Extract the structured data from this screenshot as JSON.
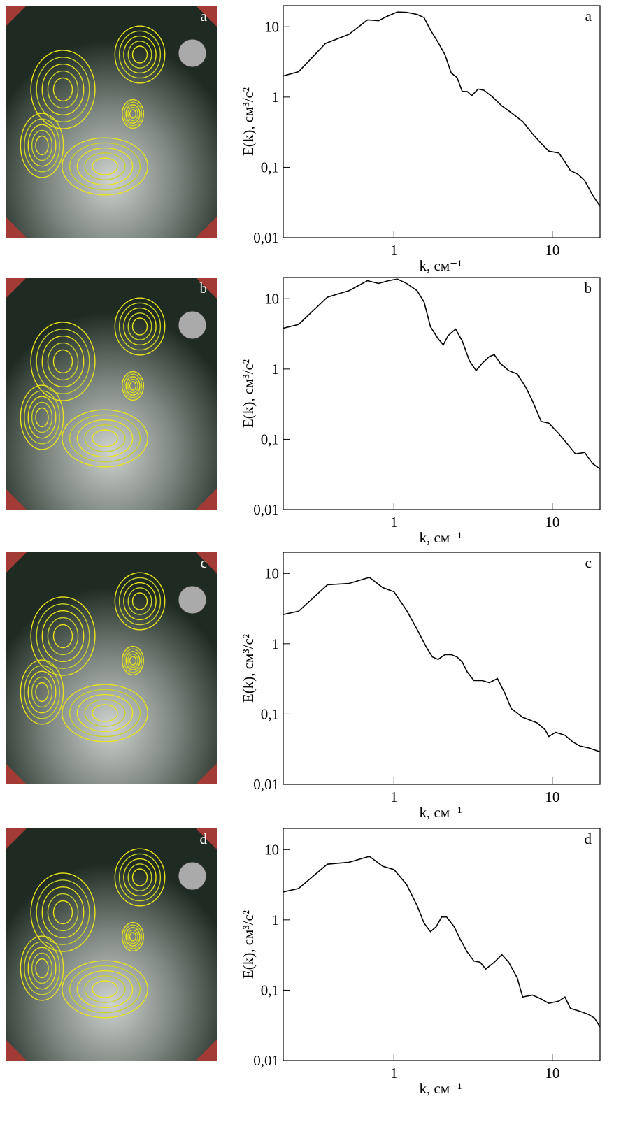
{
  "chart_data": [
    {
      "type": "line",
      "label": "a",
      "xlabel": "k, см⁻¹",
      "ylabel": "E(k), см³/с²",
      "color": "#000000",
      "xscale": "log",
      "yscale": "log",
      "xlim": [
        0.2,
        20
      ],
      "ylim": [
        0.01,
        20
      ],
      "xticks": [
        1,
        10
      ],
      "yticks": [
        {
          "value": 0.01,
          "label": "0,01"
        },
        {
          "value": 0.1,
          "label": "0,1"
        },
        1,
        10
      ],
      "x": [
        0.2,
        0.25,
        0.37,
        0.52,
        0.68,
        0.8,
        0.9,
        1.05,
        1.2,
        1.4,
        1.55,
        1.7,
        1.9,
        2.1,
        2.3,
        2.5,
        2.7,
        2.9,
        3.1,
        3.4,
        3.7,
        4.2,
        4.8,
        5.5,
        6.5,
        7.5,
        8.5,
        9.5,
        11,
        12,
        13,
        14.5,
        16,
        18,
        20
      ],
      "values": [
        2.0,
        2.3,
        5.8,
        7.8,
        12.5,
        12.2,
        14,
        16.2,
        16,
        15,
        13.5,
        9,
        6,
        4,
        2.2,
        1.9,
        1.2,
        1.2,
        1.05,
        1.3,
        1.25,
        1.0,
        0.75,
        0.6,
        0.45,
        0.3,
        0.22,
        0.17,
        0.16,
        0.12,
        0.09,
        0.08,
        0.065,
        0.04,
        0.028
      ]
    },
    {
      "type": "line",
      "label": "b",
      "xlabel": "k, см⁻¹",
      "ylabel": "E(k), см³/с²",
      "color": "#000000",
      "xscale": "log",
      "yscale": "log",
      "xlim": [
        0.2,
        20
      ],
      "ylim": [
        0.01,
        20
      ],
      "xticks": [
        1,
        10
      ],
      "yticks": [
        {
          "value": 0.01,
          "label": "0,01"
        },
        {
          "value": 0.1,
          "label": "0,1"
        },
        1,
        10
      ],
      "x": [
        0.2,
        0.25,
        0.38,
        0.52,
        0.68,
        0.8,
        0.92,
        1.05,
        1.2,
        1.4,
        1.55,
        1.7,
        1.9,
        2.05,
        2.2,
        2.45,
        2.7,
        3.0,
        3.3,
        3.6,
        4.0,
        4.3,
        4.7,
        5.3,
        6.0,
        6.8,
        7.5,
        8.5,
        9.5,
        11,
        12.5,
        14,
        16,
        18,
        20
      ],
      "values": [
        3.8,
        4.3,
        10.5,
        13,
        18,
        16.5,
        18,
        19,
        16.5,
        13,
        9,
        4,
        2.7,
        2.2,
        3,
        3.7,
        2.5,
        1.3,
        0.95,
        1.2,
        1.5,
        1.6,
        1.2,
        0.95,
        0.85,
        0.55,
        0.35,
        0.18,
        0.17,
        0.12,
        0.085,
        0.062,
        0.065,
        0.045,
        0.038
      ]
    },
    {
      "type": "line",
      "label": "c",
      "xlabel": "k, см⁻¹",
      "ylabel": "E(k), см³/с²",
      "color": "#000000",
      "xscale": "log",
      "yscale": "log",
      "xlim": [
        0.2,
        20
      ],
      "ylim": [
        0.01,
        20
      ],
      "xticks": [
        1,
        10
      ],
      "yticks": [
        {
          "value": 0.01,
          "label": "0,01"
        },
        {
          "value": 0.1,
          "label": "0,1"
        },
        1,
        10
      ],
      "x": [
        0.2,
        0.25,
        0.38,
        0.52,
        0.7,
        0.85,
        1.0,
        1.2,
        1.4,
        1.6,
        1.75,
        1.9,
        2.1,
        2.3,
        2.5,
        2.7,
        2.9,
        3.2,
        3.6,
        4.0,
        4.5,
        5.0,
        5.5,
        6.5,
        8,
        9,
        9.5,
        10.5,
        12,
        13.5,
        15,
        17,
        20
      ],
      "values": [
        2.6,
        2.9,
        6.9,
        7.2,
        8.8,
        6.3,
        5.5,
        3,
        1.6,
        0.9,
        0.65,
        0.6,
        0.7,
        0.7,
        0.65,
        0.55,
        0.4,
        0.3,
        0.3,
        0.28,
        0.32,
        0.2,
        0.12,
        0.09,
        0.075,
        0.06,
        0.048,
        0.055,
        0.05,
        0.04,
        0.035,
        0.033,
        0.029
      ]
    },
    {
      "type": "line",
      "label": "d",
      "xlabel": "k, см⁻¹",
      "ylabel": "E(k), см³/с²",
      "color": "#000000",
      "xscale": "log",
      "yscale": "log",
      "xlim": [
        0.2,
        20
      ],
      "ylim": [
        0.01,
        20
      ],
      "xticks": [
        1,
        10
      ],
      "yticks": [
        {
          "value": 0.01,
          "label": "0,01"
        },
        {
          "value": 0.1,
          "label": "0,1"
        },
        1,
        10
      ],
      "x": [
        0.2,
        0.25,
        0.38,
        0.52,
        0.7,
        0.85,
        1.0,
        1.2,
        1.4,
        1.55,
        1.7,
        1.85,
        2.0,
        2.15,
        2.4,
        2.6,
        2.9,
        3.2,
        3.5,
        3.8,
        4.3,
        4.8,
        5.3,
        6.0,
        6.5,
        7.5,
        8.5,
        9.5,
        11,
        12,
        13,
        15,
        17,
        18.5,
        20
      ],
      "values": [
        2.5,
        2.8,
        6.2,
        6.6,
        8,
        5.8,
        5.2,
        3.2,
        1.6,
        0.9,
        0.68,
        0.8,
        1.1,
        1.1,
        0.8,
        0.55,
        0.35,
        0.26,
        0.25,
        0.2,
        0.25,
        0.32,
        0.25,
        0.15,
        0.08,
        0.085,
        0.075,
        0.065,
        0.07,
        0.08,
        0.055,
        0.05,
        0.045,
        0.04,
        0.03
      ]
    }
  ]
}
